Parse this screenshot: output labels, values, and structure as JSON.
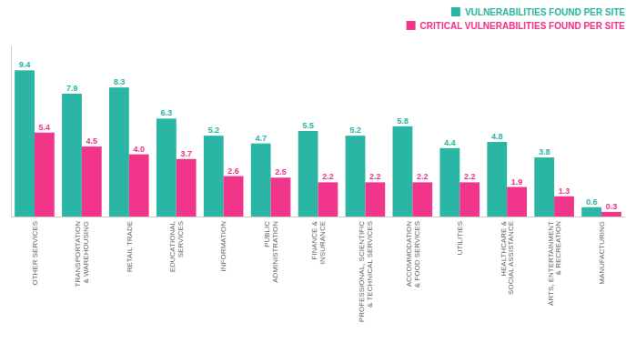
{
  "chart_data": {
    "type": "bar",
    "categories": [
      "OTHER SERVICES",
      "TRANSPORTATION\n& WAREHOUSING",
      "RETAIL TRADE",
      "EDUCATIONAL\nSERVICES",
      "INFORMATION",
      "PUBLIC\nADMINISTRATION",
      "FINANCE &\nINSURANCE",
      "PROFESSIONAL, SCIENTIFIC\n& TECHNICAL SERVICES",
      "ACCOMMODATION\n& FOOD SERVICES",
      "UTILITIES",
      "HEALTHCARE &\nSOCIAL ASSISTANCE",
      "ARTS, ENTERTAINMENT\n& RECREATION",
      "MANUFACTURING"
    ],
    "series": [
      {
        "name": "VULNERABILITIES FOUND PER SITE",
        "color": "#2ab5a5",
        "values": [
          9.4,
          7.9,
          8.3,
          6.3,
          5.2,
          4.7,
          5.5,
          5.2,
          5.8,
          4.4,
          4.8,
          3.8,
          0.6
        ],
        "value_labels": [
          "9.4",
          "7.9",
          "8.3",
          "6.3",
          "5.2",
          "4.7",
          "5.5",
          "5.2",
          "5.8",
          "4.4",
          "4.8",
          "3.8",
          "0.6"
        ]
      },
      {
        "name": "CRITICAL VULNERABILITIES FOUND PER SITE",
        "color": "#f0358a",
        "values": [
          5.4,
          4.5,
          4.0,
          3.7,
          2.6,
          2.5,
          2.2,
          2.2,
          2.2,
          2.2,
          1.9,
          1.3,
          0.3
        ],
        "value_labels": [
          "5.4",
          "4.5",
          "4.0",
          "3.7",
          "2.6",
          "2.5",
          "2.2",
          "2.2",
          "2.2",
          "2.2",
          "1.9",
          "1.3",
          "0.3"
        ]
      }
    ],
    "ylim": [
      0,
      11.0
    ],
    "data_labels": true,
    "legend": "upper right",
    "grid": false,
    "tick_labels": "x"
  }
}
